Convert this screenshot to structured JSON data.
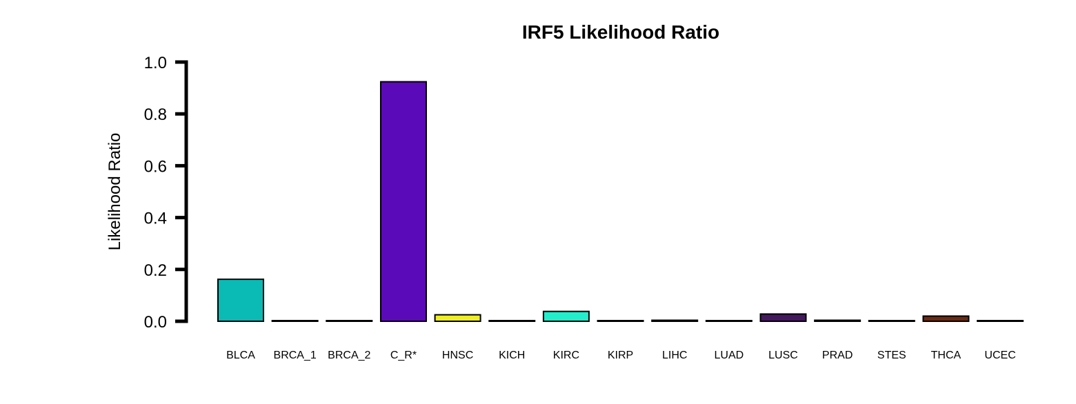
{
  "chart_data": {
    "type": "bar",
    "title": "IRF5 Likelihood Ratio",
    "xlabel": "",
    "ylabel": "Likelihood Ratio",
    "ylim": [
      0,
      1.0
    ],
    "y_ticks": [
      "0.0",
      "0.2",
      "0.4",
      "0.6",
      "0.8",
      "1.0"
    ],
    "categories": [
      "BLCA",
      "BRCA_1",
      "BRCA_2",
      "C_R*",
      "HNSC",
      "KICH",
      "KIRC",
      "KIRP",
      "LIHC",
      "LUAD",
      "LUSC",
      "PRAD",
      "STES",
      "THCA",
      "UCEC"
    ],
    "values": [
      0.162,
      0.001,
      0.001,
      0.924,
      0.025,
      0.001,
      0.038,
      0.001,
      0.004,
      0.001,
      0.028,
      0.004,
      0.001,
      0.02,
      0.001
    ],
    "colors": [
      "#0ABAB5",
      "#000000",
      "#000000",
      "#5B0ABA",
      "#EEEE22",
      "#000000",
      "#22EECC",
      "#000000",
      "#000000",
      "#000000",
      "#44195E",
      "#000000",
      "#000000",
      "#6B2A15",
      "#000000"
    ],
    "grid": false,
    "legend": "none"
  }
}
